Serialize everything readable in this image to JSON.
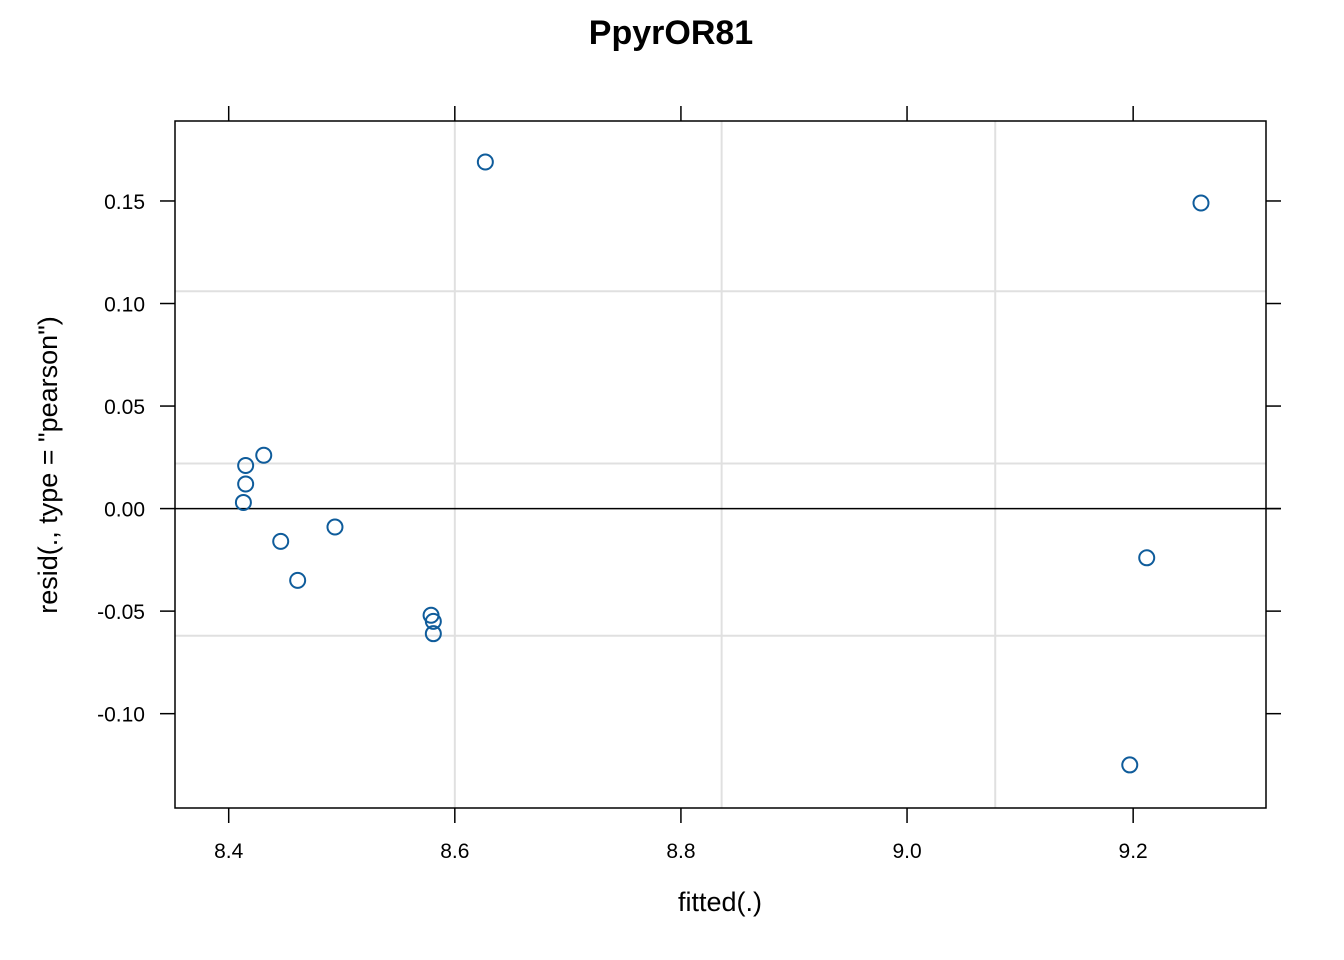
{
  "chart_data": {
    "type": "scatter",
    "title": "PpyrOR81",
    "xlabel": "fitted(.)",
    "ylabel": "resid(., type = \"pearson\")",
    "xlim": [
      8.3525,
      9.3175
    ],
    "ylim": [
      -0.146,
      0.189
    ],
    "x_ticks": [
      8.4,
      8.6,
      8.8,
      9.0,
      9.2
    ],
    "x_tick_labels": [
      "8.4",
      "8.6",
      "8.8",
      "9.0",
      "9.2"
    ],
    "y_ticks": [
      -0.1,
      -0.05,
      0.0,
      0.05,
      0.1,
      0.15
    ],
    "y_tick_labels": [
      "-0.10",
      "-0.05",
      "0.00",
      "0.05",
      "0.10",
      "0.15"
    ],
    "grid_x": [
      8.6,
      8.836,
      9.078
    ],
    "grid_y": [
      -0.062,
      0.022,
      0.106
    ],
    "reference_line_y": 0,
    "grid": true,
    "colors": {
      "points": "#0f5c9b",
      "grid": "#e0e0e0",
      "axis": "#000000"
    },
    "series": [
      {
        "x": [
          8.415,
          8.415,
          8.413,
          8.431,
          8.446,
          8.461,
          8.494,
          8.579,
          8.581,
          8.581,
          8.627,
          9.197,
          9.212,
          9.26
        ],
        "y": [
          0.021,
          0.012,
          0.003,
          0.026,
          -0.016,
          -0.035,
          -0.009,
          -0.052,
          -0.055,
          -0.061,
          0.169,
          -0.125,
          -0.024,
          0.149
        ]
      }
    ]
  }
}
